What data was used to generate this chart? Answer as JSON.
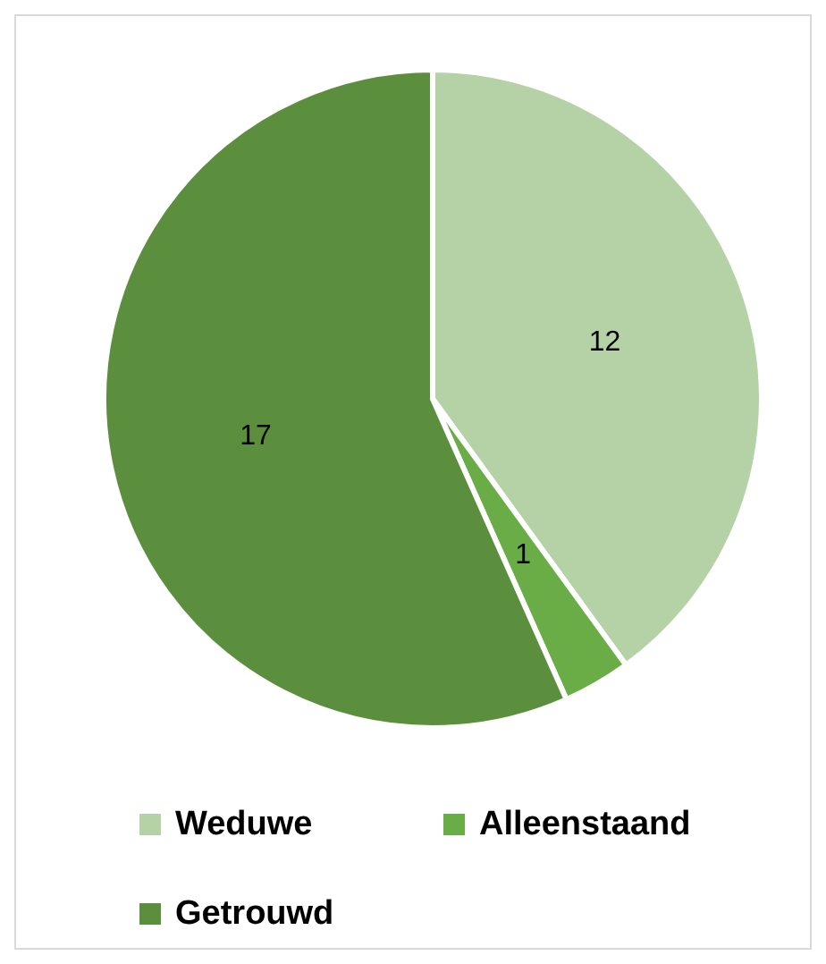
{
  "chart_data": {
    "type": "pie",
    "categories": [
      "Weduwe",
      "Alleenstaand",
      "Getrouwd"
    ],
    "values": [
      12,
      1,
      17
    ],
    "colors": [
      "#b5d2a6",
      "#6aad46",
      "#5b8f3d"
    ],
    "data_labels": true,
    "legend": "bottom"
  }
}
